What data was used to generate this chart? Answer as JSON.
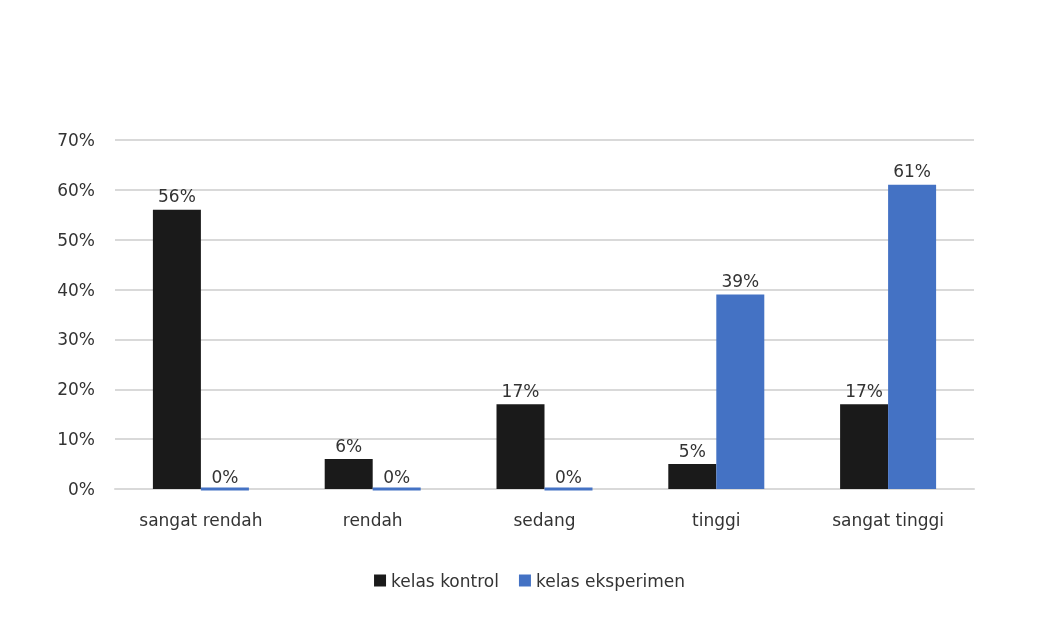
{
  "chart_data": {
    "type": "bar",
    "categories": [
      "sangat rendah",
      "rendah",
      "sedang",
      "tinggi",
      "sangat tinggi"
    ],
    "series": [
      {
        "name": "kelas kontrol",
        "color": "#1a1a1a",
        "values": [
          56,
          6,
          17,
          5,
          17
        ],
        "value_labels": [
          "56%",
          "6%",
          "17%",
          "5%",
          "17%"
        ]
      },
      {
        "name": "kelas eksperimen",
        "color": "#4472c4",
        "values": [
          0,
          0,
          0,
          39,
          61
        ],
        "value_labels": [
          "0%",
          "0%",
          "0%",
          "39%",
          "61%"
        ]
      }
    ],
    "ylim": [
      0,
      70
    ],
    "yticks": [
      {
        "value": 0,
        "label": "0%"
      },
      {
        "value": 10,
        "label": "10%"
      },
      {
        "value": 20,
        "label": "20%"
      },
      {
        "value": 30,
        "label": "30%"
      },
      {
        "value": 40,
        "label": "40%"
      },
      {
        "value": 50,
        "label": "50%"
      },
      {
        "value": 60,
        "label": "60%"
      },
      {
        "value": 70,
        "label": "70%"
      }
    ],
    "grid": "y",
    "legend": "bottom"
  }
}
